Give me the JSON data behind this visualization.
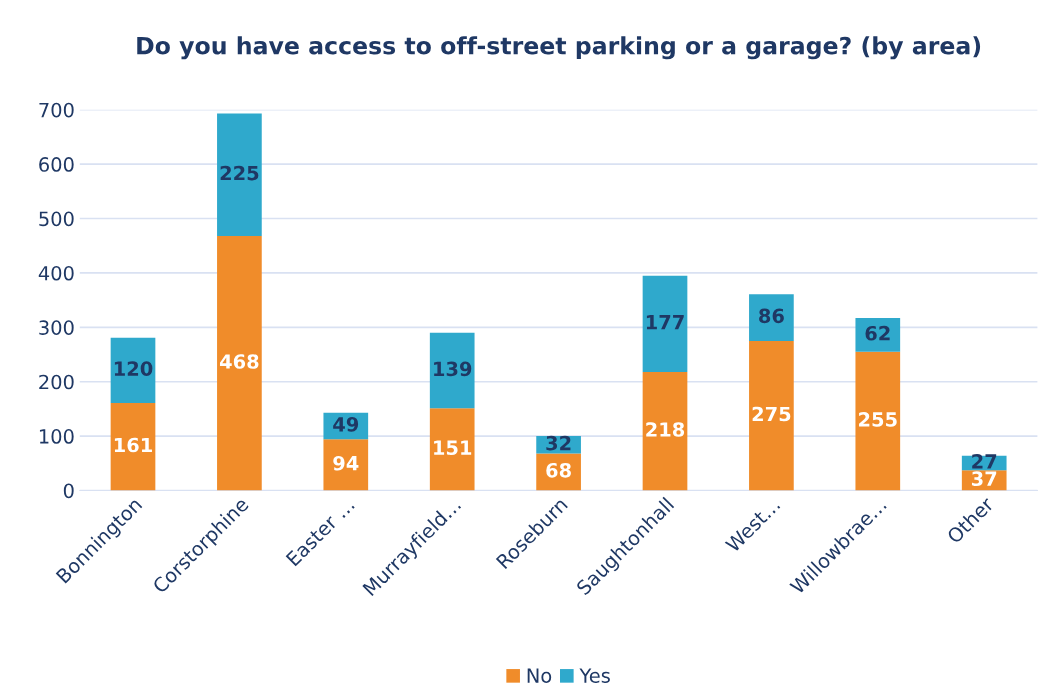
{
  "chart_data": {
    "type": "bar",
    "title": "Do you have access to off-street parking or a garage? (by area)",
    "categories": [
      "Bonnington",
      "Corstorphine",
      "Easter …",
      "Murrayfield…",
      "Roseburn",
      "Saughtonhall",
      "West…",
      "Willowbrae…",
      "Other"
    ],
    "series": [
      {
        "name": "No",
        "color": "#f08c2a",
        "values": [
          161,
          468,
          94,
          151,
          68,
          218,
          275,
          255,
          37
        ]
      },
      {
        "name": "Yes",
        "color": "#2fa9cc",
        "values": [
          120,
          225,
          49,
          139,
          32,
          177,
          86,
          62,
          27
        ]
      }
    ],
    "stacked": true,
    "ylim": [
      0,
      700
    ],
    "yticks": [
      0,
      100,
      200,
      300,
      400,
      500,
      600,
      700
    ],
    "grid": "y",
    "legend": "bottom",
    "data_labels": true
  }
}
